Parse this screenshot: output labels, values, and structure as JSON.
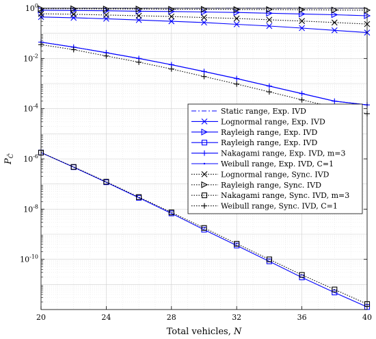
{
  "chart_data": {
    "type": "line",
    "xlabel": "Total vehicles, N",
    "ylabel": "P_{\\bar{C}}",
    "xlim": [
      20,
      40
    ],
    "ylim_log10": [
      -12,
      0
    ],
    "yscale": "log",
    "grid": true,
    "xticks": [
      20,
      24,
      28,
      32,
      36,
      40
    ],
    "yticks": [
      {
        "exp": 0,
        "label": "10",
        "sup": "0"
      },
      {
        "exp": -2,
        "label": "10",
        "sup": "-2"
      },
      {
        "exp": -4,
        "label": "10",
        "sup": "-4"
      },
      {
        "exp": -6,
        "label": "10",
        "sup": "-6"
      },
      {
        "exp": -8,
        "label": "10",
        "sup": "-8"
      },
      {
        "exp": -10,
        "label": "10",
        "sup": "-10"
      }
    ],
    "legend_position": "right",
    "x": [
      20,
      22,
      24,
      26,
      28,
      30,
      32,
      34,
      36,
      38,
      40
    ],
    "series": [
      {
        "name": "Static range, Exp. IVD",
        "color": "#0000ff",
        "dash": "dashdot",
        "marker": "none",
        "log10_values": [
          0,
          0,
          0,
          0,
          0,
          0,
          0,
          0,
          0,
          0,
          0
        ]
      },
      {
        "name": "Lognormal range, Exp. IVD",
        "color": "#0000ff",
        "dash": "solid",
        "marker": "x",
        "log10_values": [
          -0.35,
          -0.38,
          -0.42,
          -0.47,
          -0.52,
          -0.57,
          -0.64,
          -0.71,
          -0.79,
          -0.88,
          -0.97
        ]
      },
      {
        "name": "Rayleigh range, Exp. IVD",
        "color": "#0000ff",
        "dash": "solid",
        "marker": "triangle-right",
        "log10_values": [
          -0.08,
          -0.09,
          -0.1,
          -0.12,
          -0.13,
          -0.15,
          -0.17,
          -0.2,
          -0.23,
          -0.26,
          -0.3
        ]
      },
      {
        "name": "Rayleigh range, Exp. IVD",
        "color": "#0000ff",
        "dash": "solid",
        "marker": "square",
        "log10_values": [
          -5.75,
          -6.33,
          -6.93,
          -7.55,
          -8.17,
          -8.82,
          -9.45,
          -10.08,
          -10.72,
          -11.32,
          -11.9
        ]
      },
      {
        "name": "Nakagami range, Exp. IVD, m=3",
        "color": "#0000ff",
        "dash": "solid",
        "marker": "plus",
        "log10_values": [
          -1.35,
          -1.55,
          -1.77,
          -2.0,
          -2.25,
          -2.52,
          -2.8,
          -3.1,
          -3.4,
          -3.7,
          -3.85
        ]
      },
      {
        "name": "Weibull range, Exp. IVD, C=1",
        "color": "#0000ff",
        "dash": "solid",
        "marker": "dot",
        "log10_values": [
          -1.35,
          -1.55,
          -1.77,
          -2.0,
          -2.25,
          -2.52,
          -2.8,
          -3.1,
          -3.4,
          -3.7,
          -3.85
        ]
      },
      {
        "name": "Lognormal range, Sync. IVD",
        "color": "#000000",
        "dash": "dotted",
        "marker": "x",
        "log10_values": [
          -0.22,
          -0.24,
          -0.27,
          -0.3,
          -0.33,
          -0.37,
          -0.41,
          -0.46,
          -0.51,
          -0.57,
          -0.63
        ]
      },
      {
        "name": "Rayleigh range, Sync. IVD",
        "color": "#000000",
        "dash": "dotted",
        "marker": "triangle-right",
        "log10_values": [
          -0.02,
          -0.02,
          -0.03,
          -0.03,
          -0.04,
          -0.04,
          -0.05,
          -0.05,
          -0.06,
          -0.07,
          -0.08
        ]
      },
      {
        "name": "Nakagami range, Sync. IVD, m=3",
        "color": "#000000",
        "dash": "dotted",
        "marker": "square",
        "log10_values": [
          -5.75,
          -6.32,
          -6.91,
          -7.52,
          -8.13,
          -8.75,
          -9.38,
          -10.0,
          -10.62,
          -11.2,
          -11.78
        ]
      },
      {
        "name": "Weibull range, Sync. IVD, C=1",
        "color": "#000000",
        "dash": "dotted",
        "marker": "plus",
        "log10_values": [
          -1.45,
          -1.65,
          -1.9,
          -2.15,
          -2.42,
          -2.72,
          -3.02,
          -3.33,
          -3.65,
          -3.95,
          -4.2
        ]
      }
    ]
  }
}
